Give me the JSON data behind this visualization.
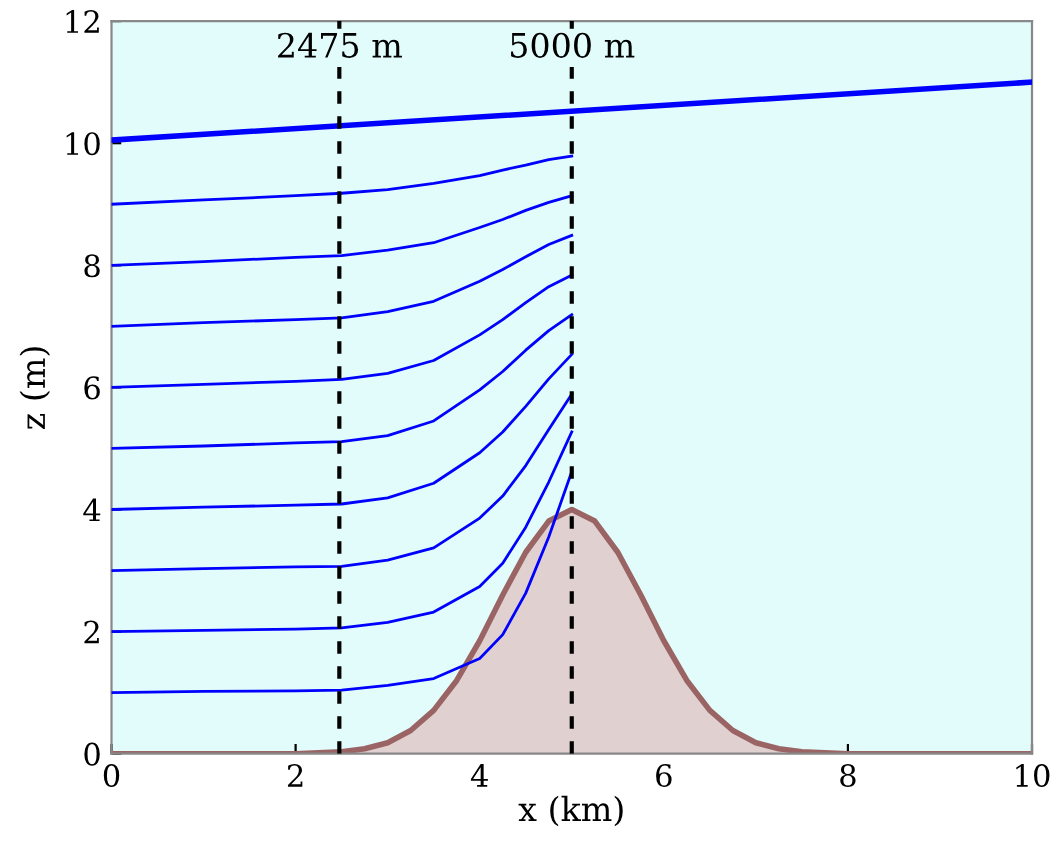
{
  "chart_data": {
    "type": "line",
    "xlabel": "x (km)",
    "ylabel": "z (m)",
    "xlim": [
      0,
      10
    ],
    "ylim": [
      0,
      12
    ],
    "xticks": [
      0,
      2,
      4,
      6,
      8,
      10
    ],
    "yticks": [
      0,
      2,
      4,
      6,
      8,
      10,
      12
    ],
    "grid": false,
    "legend": false,
    "bands": [
      {
        "axis": "x",
        "from": 0,
        "to": 10,
        "color": "#e2fcfb"
      }
    ],
    "ref_lines": [
      {
        "axis": "x",
        "value": 2.475,
        "label": "2475 m",
        "color": "#000000",
        "line_style": "dashed"
      },
      {
        "axis": "x",
        "value": 5,
        "label": "5000 m",
        "color": "#000000",
        "line_style": "dashed"
      }
    ],
    "series": [
      {
        "type": "area",
        "color": "#9a6464",
        "x": [
          0,
          2,
          2.5,
          2.75,
          3,
          3.25,
          3.5,
          3.75,
          4,
          4.25,
          4.5,
          4.75,
          5,
          5.25,
          5.5,
          5.75,
          6,
          6.25,
          6.5,
          6.75,
          7,
          7.25,
          7.5,
          8,
          10
        ],
        "values": [
          0,
          0,
          0.03,
          0.08,
          0.18,
          0.38,
          0.71,
          1.2,
          1.85,
          2.6,
          3.3,
          3.81,
          4,
          3.81,
          3.3,
          2.6,
          1.85,
          1.2,
          0.71,
          0.38,
          0.18,
          0.08,
          0.03,
          0,
          0
        ]
      },
      {
        "color": "#0000ff",
        "x": [
          0,
          10
        ],
        "values": [
          10.05,
          11.0
        ]
      },
      {
        "color": "#0000ff",
        "x": [
          0,
          1,
          2,
          2.5,
          3,
          3.5,
          4,
          4.25,
          4.5,
          4.75,
          5
        ],
        "values": [
          1.0,
          1.02,
          1.03,
          1.04,
          1.12,
          1.23,
          1.56,
          1.95,
          2.63,
          3.55,
          4.62
        ]
      },
      {
        "color": "#0000ff",
        "x": [
          0,
          1,
          2,
          2.5,
          3,
          3.5,
          4,
          4.25,
          4.5,
          4.75,
          5
        ],
        "values": [
          2.0,
          2.02,
          2.04,
          2.06,
          2.15,
          2.32,
          2.74,
          3.12,
          3.71,
          4.45,
          5.27
        ]
      },
      {
        "color": "#0000ff",
        "x": [
          0,
          1,
          2,
          2.5,
          3,
          3.5,
          4,
          4.25,
          4.5,
          4.75,
          5
        ],
        "values": [
          3.0,
          3.03,
          3.06,
          3.07,
          3.17,
          3.37,
          3.86,
          4.22,
          4.72,
          5.31,
          5.89
        ]
      },
      {
        "color": "#0000ff",
        "x": [
          0,
          1,
          2,
          2.5,
          3,
          3.5,
          4,
          4.25,
          4.5,
          4.75,
          5
        ],
        "values": [
          4.0,
          4.04,
          4.07,
          4.09,
          4.19,
          4.43,
          4.93,
          5.27,
          5.69,
          6.14,
          6.54
        ]
      },
      {
        "color": "#0000ff",
        "x": [
          0,
          1,
          2,
          2.5,
          3,
          3.5,
          4,
          4.25,
          4.5,
          4.75,
          5
        ],
        "values": [
          5.0,
          5.04,
          5.09,
          5.11,
          5.21,
          5.45,
          5.96,
          6.26,
          6.61,
          6.93,
          7.19
        ]
      },
      {
        "color": "#0000ff",
        "x": [
          0,
          1,
          2,
          2.5,
          3,
          3.5,
          4,
          4.25,
          4.5,
          4.75,
          5
        ],
        "values": [
          6.0,
          6.05,
          6.1,
          6.13,
          6.23,
          6.44,
          6.86,
          7.11,
          7.39,
          7.65,
          7.84
        ]
      },
      {
        "color": "#0000ff",
        "x": [
          0,
          1,
          2,
          2.5,
          3,
          3.5,
          4,
          4.25,
          4.5,
          4.75,
          5
        ],
        "values": [
          7.0,
          7.06,
          7.11,
          7.14,
          7.24,
          7.41,
          7.74,
          7.93,
          8.14,
          8.34,
          8.49
        ]
      },
      {
        "color": "#0000ff",
        "x": [
          0,
          1,
          2,
          2.5,
          3,
          3.5,
          4,
          4.25,
          4.5,
          4.75,
          5
        ],
        "values": [
          8.0,
          8.06,
          8.13,
          8.16,
          8.25,
          8.37,
          8.62,
          8.75,
          8.9,
          9.03,
          9.14
        ]
      },
      {
        "color": "#0000ff",
        "x": [
          0,
          1,
          2,
          2.5,
          3,
          3.5,
          4,
          4.25,
          4.5,
          4.75,
          5
        ],
        "values": [
          9.0,
          9.07,
          9.14,
          9.18,
          9.24,
          9.34,
          9.47,
          9.56,
          9.64,
          9.73,
          9.79
        ]
      }
    ]
  }
}
